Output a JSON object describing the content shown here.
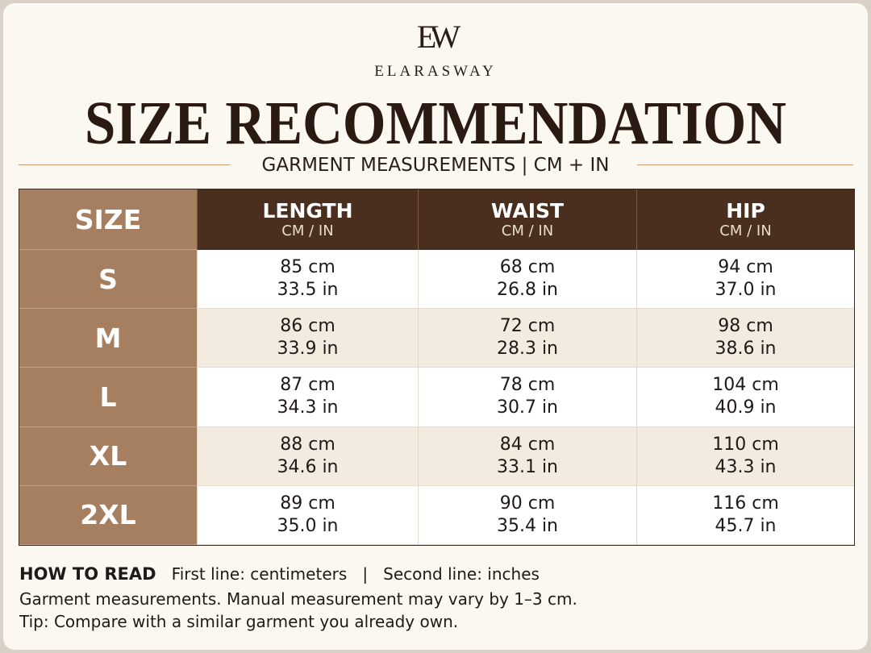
{
  "brand": {
    "monogram": "EW",
    "name": "ELARASWAY"
  },
  "title": "SIZE RECOMMENDATION",
  "subtitle": "GARMENT MEASUREMENTS | CM + IN",
  "table": {
    "corner": "SIZE",
    "columns": [
      {
        "name": "LENGTH",
        "unit": "CM / IN"
      },
      {
        "name": "WAIST",
        "unit": "CM / IN"
      },
      {
        "name": "HIP",
        "unit": "CM / IN"
      }
    ],
    "rows": [
      {
        "size": "S",
        "cells": [
          [
            "85 cm",
            "33.5 in"
          ],
          [
            "68 cm",
            "26.8 in"
          ],
          [
            "94 cm",
            "37.0 in"
          ]
        ]
      },
      {
        "size": "M",
        "cells": [
          [
            "86 cm",
            "33.9 in"
          ],
          [
            "72 cm",
            "28.3 in"
          ],
          [
            "98 cm",
            "38.6 in"
          ]
        ]
      },
      {
        "size": "L",
        "cells": [
          [
            "87 cm",
            "34.3 in"
          ],
          [
            "78 cm",
            "30.7 in"
          ],
          [
            "104 cm",
            "40.9 in"
          ]
        ]
      },
      {
        "size": "XL",
        "cells": [
          [
            "88 cm",
            "34.6 in"
          ],
          [
            "84 cm",
            "33.1 in"
          ],
          [
            "110 cm",
            "43.3 in"
          ]
        ]
      },
      {
        "size": "2XL",
        "cells": [
          [
            "89 cm",
            "35.0 in"
          ],
          [
            "90 cm",
            "35.4 in"
          ],
          [
            "116 cm",
            "45.7 in"
          ]
        ]
      }
    ]
  },
  "notes": {
    "heading": "HOW TO READ",
    "legend": "First line: centimeters   |   Second line: inches",
    "lines": [
      "Garment measurements. Manual measurement may vary by 1–3 cm.",
      "Tip: Compare with a similar garment you already own."
    ]
  }
}
